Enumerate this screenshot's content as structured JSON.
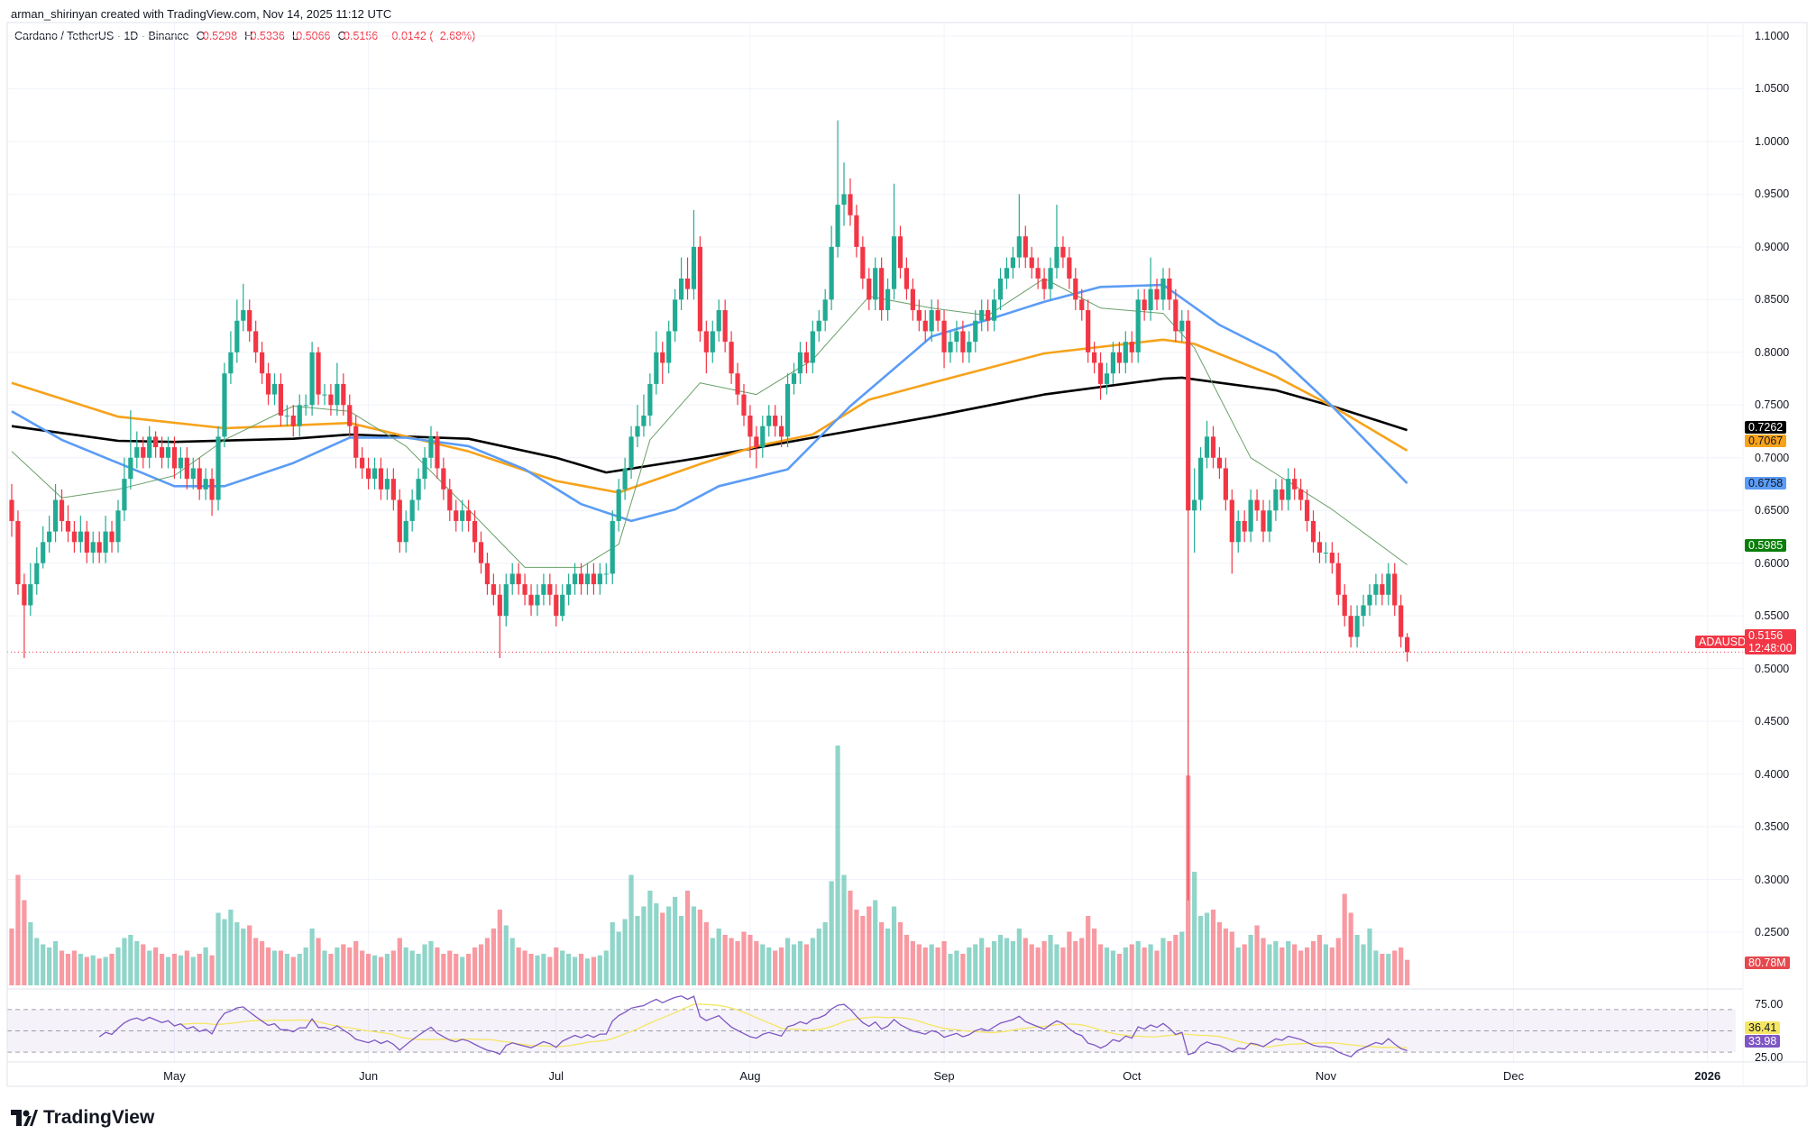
{
  "header": {
    "credit": "arman_shirinyan created with TradingView.com, Nov 14, 2025 11:12 UTC"
  },
  "legend": {
    "symbol": "Cardano / TetherUS · 1D · Binance",
    "o_label": "O",
    "o": "0.5298",
    "h_label": "H",
    "h": "0.5336",
    "l_label": "L",
    "l": "0.5066",
    "c_label": "C",
    "c": "0.5156",
    "change": "−0.0142 (−2.68%)"
  },
  "tags": {
    "ma_black": "0.7262",
    "ma_orange": "0.7067",
    "ma_blue": "0.6758",
    "ma_green": "0.5985",
    "symbol": "ADAUSDT",
    "last_price": "0.5156",
    "countdown": "12:48:00",
    "volume": "80.78M",
    "rsi_ma": "36.41",
    "rsi": "33.98"
  },
  "logo": {
    "text": "TradingView",
    "icon": "tradingview-logo-icon"
  },
  "colors": {
    "up": "#22ab94",
    "down": "#f23645",
    "ma200": "#000000",
    "ma100": "#f7a21b",
    "ma50": "#5b9cf6",
    "ma20": "#6aa06a",
    "rsi": "#7e57c2",
    "rsi_ma": "#f5e663"
  },
  "chart_data": {
    "type": "candlestick",
    "interval": "1D",
    "start": "2025-04-05",
    "ylim": [
      0.25,
      1.1
    ],
    "grid": true,
    "y_ticks": [
      "1.1000",
      "1.0500",
      "1.0000",
      "0.9500",
      "0.9000",
      "0.8500",
      "0.8000",
      "0.7500",
      "0.7000",
      "0.6500",
      "0.6000",
      "0.5500",
      "0.5000",
      "0.4500",
      "0.4000",
      "0.3500",
      "0.3000",
      "0.2500"
    ],
    "x_ticks": [
      [
        "2025-05-01",
        "May"
      ],
      [
        "2025-06-01",
        "Jun"
      ],
      [
        "2025-07-01",
        "Jul"
      ],
      [
        "2025-08-01",
        "Aug"
      ],
      [
        "2025-09-01",
        "Sep"
      ],
      [
        "2025-10-01",
        "Oct"
      ],
      [
        "2025-11-01",
        "Nov"
      ],
      [
        "2025-12-01",
        "Dec"
      ],
      [
        "2026-01-01",
        "2026"
      ]
    ],
    "close": [
      0.64,
      0.58,
      0.56,
      0.58,
      0.6,
      0.62,
      0.63,
      0.66,
      0.64,
      0.63,
      0.62,
      0.63,
      0.61,
      0.62,
      0.61,
      0.63,
      0.62,
      0.65,
      0.68,
      0.7,
      0.71,
      0.7,
      0.72,
      0.71,
      0.7,
      0.71,
      0.69,
      0.7,
      0.68,
      0.69,
      0.67,
      0.68,
      0.66,
      0.72,
      0.78,
      0.8,
      0.83,
      0.84,
      0.82,
      0.8,
      0.78,
      0.76,
      0.77,
      0.74,
      0.74,
      0.73,
      0.75,
      0.75,
      0.8,
      0.76,
      0.76,
      0.75,
      0.77,
      0.75,
      0.73,
      0.7,
      0.69,
      0.68,
      0.69,
      0.67,
      0.68,
      0.66,
      0.62,
      0.64,
      0.66,
      0.68,
      0.7,
      0.72,
      0.69,
      0.67,
      0.65,
      0.64,
      0.65,
      0.64,
      0.62,
      0.6,
      0.58,
      0.57,
      0.55,
      0.58,
      0.59,
      0.58,
      0.57,
      0.56,
      0.57,
      0.58,
      0.57,
      0.55,
      0.57,
      0.58,
      0.59,
      0.58,
      0.59,
      0.58,
      0.59,
      0.59,
      0.64,
      0.67,
      0.69,
      0.72,
      0.73,
      0.74,
      0.77,
      0.8,
      0.79,
      0.82,
      0.85,
      0.87,
      0.86,
      0.9,
      0.82,
      0.8,
      0.82,
      0.84,
      0.81,
      0.78,
      0.76,
      0.74,
      0.72,
      0.71,
      0.73,
      0.74,
      0.73,
      0.72,
      0.77,
      0.78,
      0.8,
      0.79,
      0.82,
      0.83,
      0.85,
      0.9,
      0.94,
      0.95,
      0.93,
      0.9,
      0.87,
      0.85,
      0.88,
      0.84,
      0.86,
      0.91,
      0.88,
      0.86,
      0.84,
      0.83,
      0.82,
      0.84,
      0.83,
      0.8,
      0.81,
      0.82,
      0.8,
      0.81,
      0.83,
      0.84,
      0.83,
      0.85,
      0.87,
      0.88,
      0.89,
      0.91,
      0.89,
      0.88,
      0.87,
      0.86,
      0.88,
      0.9,
      0.89,
      0.87,
      0.85,
      0.84,
      0.8,
      0.79,
      0.77,
      0.78,
      0.8,
      0.79,
      0.81,
      0.8,
      0.85,
      0.84,
      0.86,
      0.85,
      0.87,
      0.85,
      0.82,
      0.83,
      0.65,
      0.66,
      0.7,
      0.72,
      0.7,
      0.69,
      0.66,
      0.62,
      0.64,
      0.63,
      0.66,
      0.65,
      0.63,
      0.65,
      0.67,
      0.66,
      0.68,
      0.67,
      0.66,
      0.64,
      0.62,
      0.61,
      0.61,
      0.6,
      0.57,
      0.55,
      0.53,
      0.55,
      0.56,
      0.57,
      0.58,
      0.57,
      0.59,
      0.56,
      0.53,
      0.5156
    ],
    "high": [
      0.675,
      0.65,
      0.59,
      0.6,
      0.615,
      0.635,
      0.645,
      0.675,
      0.67,
      0.655,
      0.64,
      0.645,
      0.64,
      0.63,
      0.63,
      0.645,
      0.64,
      0.66,
      0.7,
      0.745,
      0.725,
      0.72,
      0.73,
      0.725,
      0.72,
      0.72,
      0.72,
      0.71,
      0.71,
      0.7,
      0.7,
      0.69,
      0.69,
      0.73,
      0.79,
      0.82,
      0.85,
      0.865,
      0.85,
      0.83,
      0.81,
      0.79,
      0.78,
      0.78,
      0.75,
      0.75,
      0.76,
      0.76,
      0.81,
      0.805,
      0.77,
      0.77,
      0.79,
      0.78,
      0.76,
      0.74,
      0.71,
      0.7,
      0.7,
      0.7,
      0.69,
      0.69,
      0.67,
      0.65,
      0.67,
      0.69,
      0.71,
      0.73,
      0.725,
      0.7,
      0.68,
      0.66,
      0.66,
      0.66,
      0.65,
      0.63,
      0.61,
      0.59,
      0.58,
      0.59,
      0.6,
      0.6,
      0.59,
      0.58,
      0.58,
      0.59,
      0.59,
      0.58,
      0.58,
      0.59,
      0.6,
      0.6,
      0.6,
      0.6,
      0.6,
      0.6,
      0.65,
      0.68,
      0.7,
      0.73,
      0.75,
      0.76,
      0.78,
      0.82,
      0.81,
      0.83,
      0.86,
      0.89,
      0.89,
      0.935,
      0.91,
      0.83,
      0.83,
      0.85,
      0.85,
      0.82,
      0.79,
      0.77,
      0.75,
      0.73,
      0.74,
      0.75,
      0.75,
      0.74,
      0.78,
      0.79,
      0.81,
      0.81,
      0.83,
      0.84,
      0.86,
      0.92,
      1.02,
      0.98,
      0.965,
      0.94,
      0.91,
      0.88,
      0.89,
      0.89,
      0.87,
      0.96,
      0.92,
      0.89,
      0.87,
      0.85,
      0.84,
      0.85,
      0.85,
      0.84,
      0.82,
      0.83,
      0.83,
      0.82,
      0.84,
      0.85,
      0.85,
      0.86,
      0.88,
      0.89,
      0.9,
      0.95,
      0.92,
      0.9,
      0.89,
      0.88,
      0.89,
      0.94,
      0.91,
      0.9,
      0.88,
      0.86,
      0.85,
      0.81,
      0.8,
      0.79,
      0.81,
      0.81,
      0.82,
      0.82,
      0.86,
      0.86,
      0.89,
      0.87,
      0.88,
      0.88,
      0.86,
      0.84,
      0.84,
      0.69,
      0.71,
      0.735,
      0.73,
      0.71,
      0.7,
      0.67,
      0.65,
      0.65,
      0.67,
      0.67,
      0.66,
      0.66,
      0.68,
      0.68,
      0.69,
      0.69,
      0.68,
      0.67,
      0.65,
      0.63,
      0.62,
      0.62,
      0.61,
      0.58,
      0.56,
      0.56,
      0.57,
      0.58,
      0.59,
      0.59,
      0.6,
      0.6,
      0.57,
      0.5336
    ],
    "low": [
      0.625,
      0.57,
      0.51,
      0.55,
      0.57,
      0.595,
      0.61,
      0.62,
      0.63,
      0.62,
      0.61,
      0.61,
      0.6,
      0.6,
      0.6,
      0.6,
      0.61,
      0.61,
      0.64,
      0.67,
      0.69,
      0.69,
      0.69,
      0.7,
      0.69,
      0.69,
      0.68,
      0.68,
      0.67,
      0.67,
      0.66,
      0.66,
      0.645,
      0.65,
      0.71,
      0.77,
      0.79,
      0.82,
      0.81,
      0.79,
      0.77,
      0.75,
      0.75,
      0.73,
      0.73,
      0.72,
      0.72,
      0.74,
      0.74,
      0.75,
      0.75,
      0.74,
      0.74,
      0.74,
      0.72,
      0.69,
      0.68,
      0.67,
      0.67,
      0.66,
      0.66,
      0.65,
      0.61,
      0.61,
      0.63,
      0.65,
      0.67,
      0.69,
      0.68,
      0.66,
      0.64,
      0.63,
      0.63,
      0.63,
      0.61,
      0.59,
      0.57,
      0.56,
      0.51,
      0.54,
      0.57,
      0.57,
      0.56,
      0.55,
      0.55,
      0.56,
      0.56,
      0.54,
      0.545,
      0.56,
      0.57,
      0.57,
      0.57,
      0.57,
      0.57,
      0.58,
      0.58,
      0.63,
      0.66,
      0.68,
      0.71,
      0.72,
      0.73,
      0.76,
      0.77,
      0.78,
      0.81,
      0.84,
      0.85,
      0.85,
      0.81,
      0.78,
      0.79,
      0.81,
      0.8,
      0.77,
      0.75,
      0.73,
      0.7,
      0.69,
      0.7,
      0.72,
      0.72,
      0.71,
      0.71,
      0.76,
      0.77,
      0.78,
      0.78,
      0.81,
      0.82,
      0.84,
      0.89,
      0.92,
      0.92,
      0.89,
      0.86,
      0.84,
      0.84,
      0.83,
      0.83,
      0.85,
      0.87,
      0.85,
      0.83,
      0.82,
      0.81,
      0.81,
      0.82,
      0.785,
      0.79,
      0.8,
      0.79,
      0.79,
      0.8,
      0.82,
      0.82,
      0.82,
      0.84,
      0.86,
      0.87,
      0.88,
      0.88,
      0.87,
      0.86,
      0.85,
      0.85,
      0.87,
      0.88,
      0.86,
      0.84,
      0.83,
      0.79,
      0.78,
      0.755,
      0.76,
      0.77,
      0.78,
      0.78,
      0.79,
      0.79,
      0.83,
      0.83,
      0.84,
      0.84,
      0.84,
      0.81,
      0.81,
      0.28,
      0.61,
      0.65,
      0.69,
      0.69,
      0.68,
      0.65,
      0.59,
      0.61,
      0.62,
      0.62,
      0.64,
      0.62,
      0.62,
      0.64,
      0.65,
      0.65,
      0.66,
      0.65,
      0.63,
      0.61,
      0.6,
      0.6,
      0.59,
      0.56,
      0.54,
      0.52,
      0.52,
      0.54,
      0.55,
      0.56,
      0.56,
      0.56,
      0.55,
      0.52,
      0.5066
    ],
    "first_open": 0.66,
    "last_open": 0.5298,
    "volume_m": [
      180,
      350,
      270,
      200,
      150,
      130,
      120,
      140,
      110,
      100,
      110,
      100,
      90,
      95,
      85,
      90,
      100,
      120,
      150,
      160,
      140,
      130,
      110,
      120,
      100,
      90,
      100,
      95,
      110,
      90,
      100,
      120,
      95,
      230,
      210,
      240,
      200,
      180,
      190,
      150,
      140,
      120,
      110,
      110,
      100,
      90,
      100,
      120,
      180,
      150,
      110,
      100,
      120,
      130,
      120,
      140,
      110,
      100,
      95,
      90,
      100,
      110,
      150,
      120,
      110,
      100,
      130,
      140,
      120,
      100,
      110,
      100,
      90,
      100,
      120,
      130,
      150,
      180,
      240,
      190,
      150,
      120,
      110,
      100,
      95,
      100,
      90,
      120,
      110,
      100,
      90,
      100,
      85,
      90,
      95,
      110,
      200,
      170,
      210,
      350,
      220,
      250,
      300,
      260,
      230,
      250,
      280,
      220,
      300,
      250,
      240,
      200,
      150,
      180,
      160,
      150,
      140,
      170,
      160,
      140,
      130,
      120,
      110,
      120,
      150,
      130,
      140,
      130,
      150,
      180,
      200,
      330,
      760,
      350,
      300,
      240,
      220,
      250,
      270,
      200,
      180,
      250,
      200,
      160,
      140,
      130,
      120,
      130,
      120,
      140,
      100,
      110,
      100,
      120,
      130,
      150,
      120,
      140,
      160,
      150,
      140,
      180,
      150,
      130,
      120,
      140,
      160,
      130,
      120,
      170,
      140,
      150,
      220,
      180,
      130,
      120,
      110,
      100,
      120,
      130,
      140,
      120,
      130,
      110,
      150,
      140,
      160,
      170,
      665,
      360,
      220,
      230,
      240,
      200,
      180,
      170,
      120,
      130,
      160,
      190,
      150,
      130,
      140,
      120,
      140,
      130,
      110,
      120,
      140,
      160,
      130,
      120,
      150,
      290,
      230,
      160,
      130,
      180,
      110,
      100,
      100,
      110,
      120,
      80.78
    ],
    "moving_averages": [
      {
        "color_key": "ma200",
        "points": [
          [
            "2025-04-05",
            0.73
          ],
          [
            "2025-04-22",
            0.716
          ],
          [
            "2025-05-01",
            0.715
          ],
          [
            "2025-05-20",
            0.718
          ],
          [
            "2025-05-29",
            0.722
          ],
          [
            "2025-06-17",
            0.718
          ],
          [
            "2025-07-01",
            0.7
          ],
          [
            "2025-07-09",
            0.686
          ],
          [
            "2025-07-24",
            0.7
          ],
          [
            "2025-08-11",
            0.719
          ],
          [
            "2025-08-30",
            0.739
          ],
          [
            "2025-09-17",
            0.76
          ],
          [
            "2025-10-06",
            0.775
          ],
          [
            "2025-10-09",
            0.776
          ],
          [
            "2025-10-24",
            0.764
          ],
          [
            "2025-11-02",
            0.749
          ],
          [
            "2025-11-14",
            0.7262
          ]
        ]
      },
      {
        "color_key": "ma100",
        "points": [
          [
            "2025-04-05",
            0.771
          ],
          [
            "2025-04-22",
            0.739
          ],
          [
            "2025-05-09",
            0.728
          ],
          [
            "2025-05-29",
            0.733
          ],
          [
            "2025-06-17",
            0.706
          ],
          [
            "2025-07-01",
            0.678
          ],
          [
            "2025-07-11",
            0.667
          ],
          [
            "2025-07-24",
            0.694
          ],
          [
            "2025-08-02",
            0.711
          ],
          [
            "2025-08-11",
            0.722
          ],
          [
            "2025-08-20",
            0.755
          ],
          [
            "2025-08-30",
            0.771
          ],
          [
            "2025-09-17",
            0.799
          ],
          [
            "2025-10-06",
            0.812
          ],
          [
            "2025-10-11",
            0.808
          ],
          [
            "2025-10-24",
            0.777
          ],
          [
            "2025-11-02",
            0.749
          ],
          [
            "2025-11-14",
            0.7067
          ]
        ]
      },
      {
        "color_key": "ma50",
        "points": [
          [
            "2025-04-05",
            0.744
          ],
          [
            "2025-04-13",
            0.717
          ],
          [
            "2025-04-22",
            0.695
          ],
          [
            "2025-05-01",
            0.673
          ],
          [
            "2025-05-09",
            0.673
          ],
          [
            "2025-05-20",
            0.695
          ],
          [
            "2025-05-29",
            0.719
          ],
          [
            "2025-06-07",
            0.719
          ],
          [
            "2025-06-17",
            0.711
          ],
          [
            "2025-06-26",
            0.689
          ],
          [
            "2025-07-05",
            0.656
          ],
          [
            "2025-07-13",
            0.64
          ],
          [
            "2025-07-20",
            0.651
          ],
          [
            "2025-07-27",
            0.673
          ],
          [
            "2025-08-07",
            0.689
          ],
          [
            "2025-08-17",
            0.749
          ],
          [
            "2025-08-30",
            0.815
          ],
          [
            "2025-09-08",
            0.831
          ],
          [
            "2025-09-17",
            0.848
          ],
          [
            "2025-09-26",
            0.862
          ],
          [
            "2025-10-06",
            0.864
          ],
          [
            "2025-10-15",
            0.826
          ],
          [
            "2025-10-24",
            0.799
          ],
          [
            "2025-11-02",
            0.749
          ],
          [
            "2025-11-14",
            0.6758
          ]
        ]
      },
      {
        "color_key": "ma20",
        "points": [
          [
            "2025-04-05",
            0.706
          ],
          [
            "2025-04-13",
            0.662
          ],
          [
            "2025-04-22",
            0.67
          ],
          [
            "2025-05-01",
            0.683
          ],
          [
            "2025-05-09",
            0.717
          ],
          [
            "2025-05-20",
            0.749
          ],
          [
            "2025-05-29",
            0.744
          ],
          [
            "2025-06-07",
            0.711
          ],
          [
            "2025-06-17",
            0.651
          ],
          [
            "2025-06-26",
            0.596
          ],
          [
            "2025-07-05",
            0.596
          ],
          [
            "2025-07-11",
            0.618
          ],
          [
            "2025-07-16",
            0.717
          ],
          [
            "2025-07-24",
            0.771
          ],
          [
            "2025-08-02",
            0.76
          ],
          [
            "2025-08-11",
            0.793
          ],
          [
            "2025-08-20",
            0.853
          ],
          [
            "2025-08-30",
            0.842
          ],
          [
            "2025-09-08",
            0.835
          ],
          [
            "2025-09-17",
            0.87
          ],
          [
            "2025-09-26",
            0.842
          ],
          [
            "2025-10-06",
            0.837
          ],
          [
            "2025-10-11",
            0.804
          ],
          [
            "2025-10-20",
            0.7
          ],
          [
            "2025-11-02",
            0.651
          ],
          [
            "2025-11-14",
            0.5985
          ]
        ]
      }
    ],
    "rsi": {
      "period": 14,
      "ma_period": 14,
      "ticks": [
        "75.00",
        "25.00"
      ],
      "bands": [
        70,
        50,
        30
      ]
    }
  }
}
